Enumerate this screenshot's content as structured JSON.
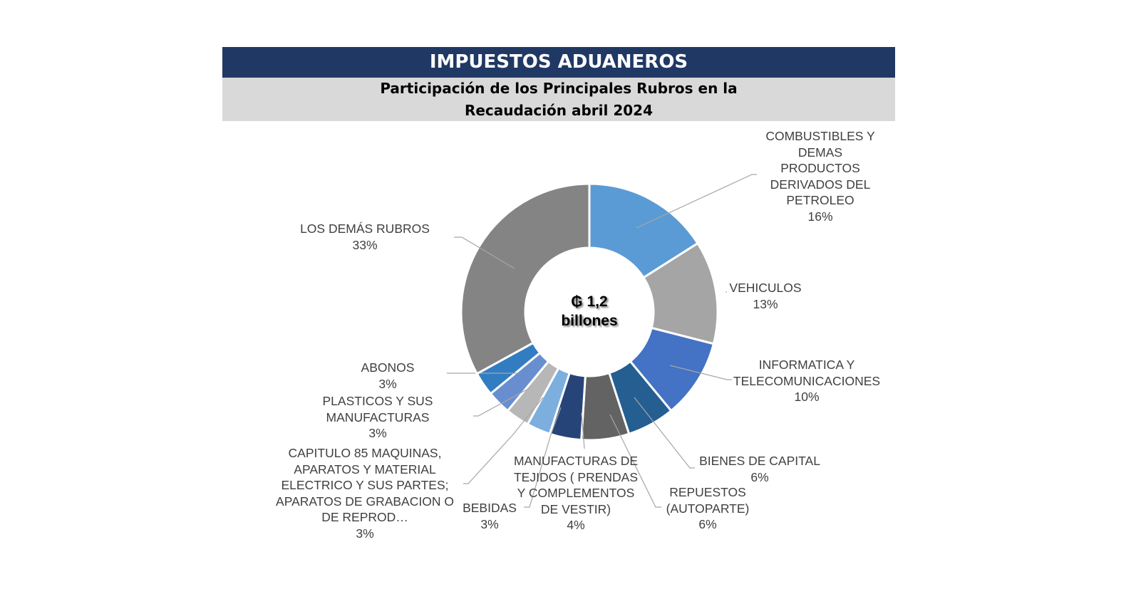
{
  "header": {
    "title": "IMPUESTOS ADUANEROS",
    "subtitle_line1": "Participación de los Principales Rubros en la",
    "subtitle_line2": "Recaudación abril 2024"
  },
  "chart_data": {
    "type": "pie",
    "variant": "donut",
    "title": "Participación de los Principales Rubros en la Recaudación abril 2024",
    "center_label": {
      "line1": "₲ 1,2",
      "line2": "billones"
    },
    "slices": [
      {
        "label": "COMBUSTIBLES Y DEMAS PRODUCTOS DERIVADOS DEL PETROLEO",
        "value": 16,
        "pct": "16%",
        "color": "#5B9BD5"
      },
      {
        "label": "VEHICULOS",
        "value": 13,
        "pct": "13%",
        "color": "#A5A5A5"
      },
      {
        "label": "INFORMATICA Y TELECOMUNICACIONES",
        "value": 10,
        "pct": "10%",
        "color": "#4472C4"
      },
      {
        "label": "BIENES DE CAPITAL",
        "value": 6,
        "pct": "6%",
        "color": "#255E91"
      },
      {
        "label": "REPUESTOS (AUTOPARTE)",
        "value": 6,
        "pct": "6%",
        "color": "#636363"
      },
      {
        "label": "MANUFACTURAS DE TEJIDOS ( PRENDAS Y COMPLEMENTOS DE VESTIR)",
        "value": 4,
        "pct": "4%",
        "color": "#264478"
      },
      {
        "label": "BEBIDAS",
        "value": 3,
        "pct": "3%",
        "color": "#7CAFDD"
      },
      {
        "label": "CAPITULO 85 MAQUINAS, APARATOS Y MATERIAL ELECTRICO Y SUS PARTES; APARATOS DE GRABACION O DE REPROD…",
        "value": 3,
        "pct": "3%",
        "color": "#B7B7B7"
      },
      {
        "label": "PLASTICOS Y SUS MANUFACTURAS",
        "value": 3,
        "pct": "3%",
        "color": "#698ED0"
      },
      {
        "label": "ABONOS",
        "value": 3,
        "pct": "3%",
        "color": "#327DC2"
      },
      {
        "label": "LOS DEMÁS RUBROS",
        "value": 33,
        "pct": "33%",
        "color": "#848484"
      }
    ],
    "legend": "none"
  }
}
